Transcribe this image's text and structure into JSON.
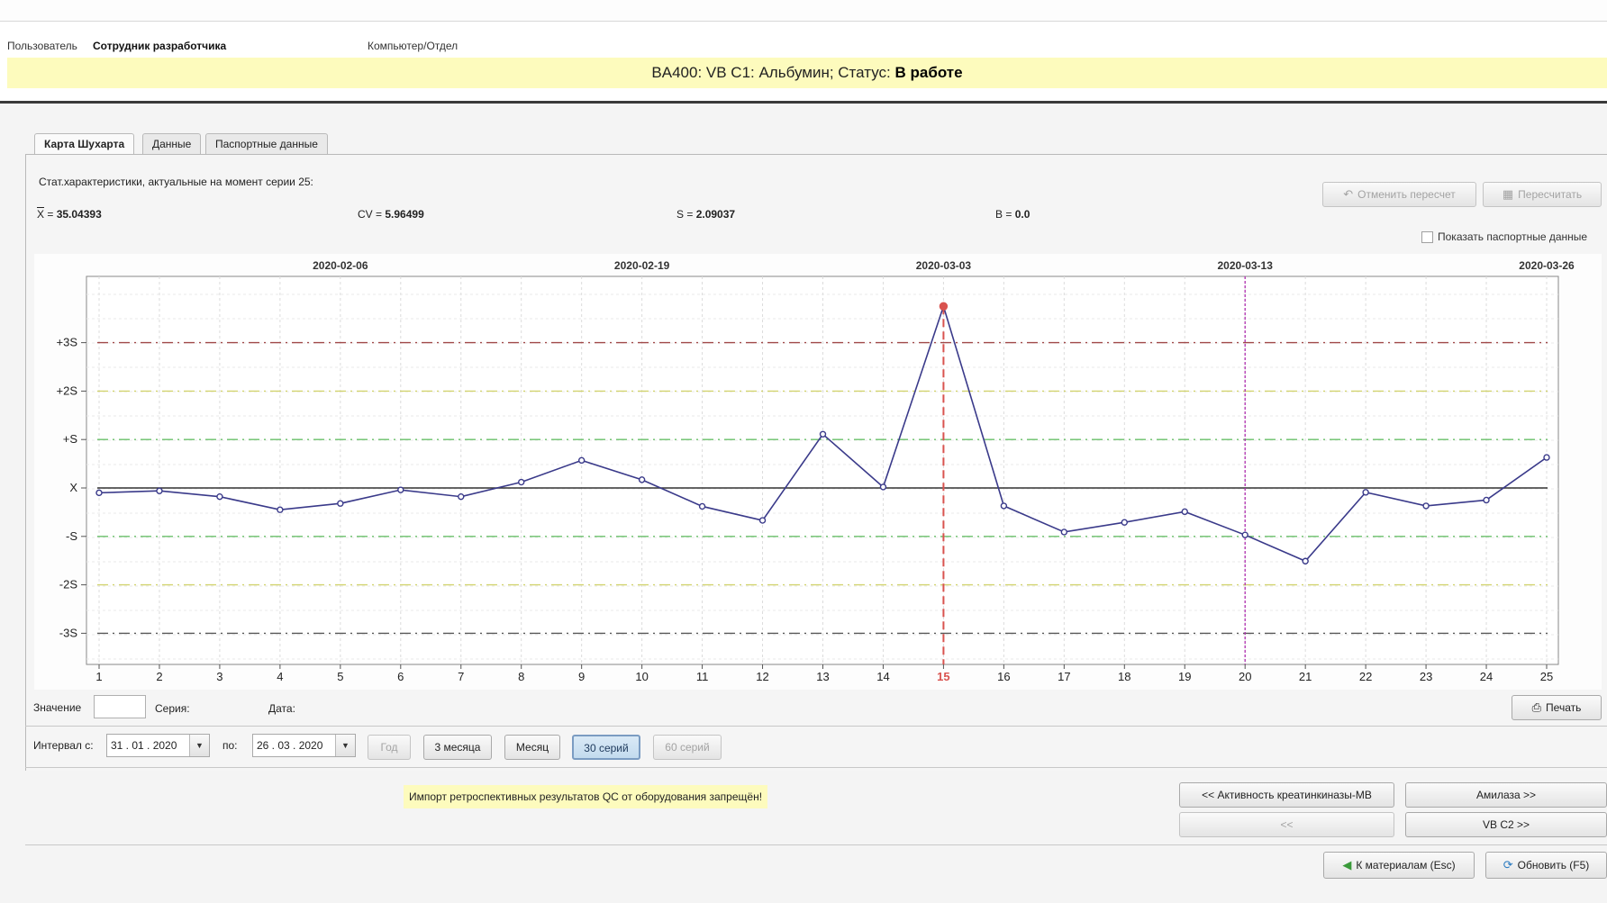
{
  "header": {
    "user_label": "Пользователь",
    "user_name": "Сотрудник разработчика",
    "computer_label": "Компьютер/Отдел"
  },
  "status": {
    "prefix": "BA400: VB C1: Альбумин; Статус:",
    "state": "В работе"
  },
  "tabs": [
    {
      "label": "Карта Шухарта",
      "active": true
    },
    {
      "label": "Данные",
      "active": false
    },
    {
      "label": "Паспортные данные",
      "active": false
    }
  ],
  "stats": {
    "title": "Стат.характеристики, актуальные на момент серии 25:",
    "x_label": "X",
    "x_value": "35.04393",
    "cv_label": "CV",
    "cv_value": "5.96499",
    "s_label": "S",
    "s_value": "2.09037",
    "b_label": "B",
    "b_value": "0.0",
    "eq": " = "
  },
  "toolbar": {
    "cancel_recalc": "Отменить пересчет",
    "recalc": "Пересчитать",
    "show_passport": "Показать паспортные данные"
  },
  "chart_data": {
    "type": "line",
    "x": [
      1,
      2,
      3,
      4,
      5,
      6,
      7,
      8,
      9,
      10,
      11,
      12,
      13,
      14,
      15,
      16,
      17,
      18,
      19,
      20,
      21,
      22,
      23,
      24,
      25
    ],
    "y_sigma": [
      -0.1,
      -0.06,
      -0.18,
      -0.45,
      -0.32,
      -0.04,
      -0.18,
      0.12,
      0.57,
      0.17,
      -0.38,
      -0.67,
      1.11,
      0.02,
      3.75,
      -0.37,
      -0.91,
      -0.71,
      -0.49,
      -0.97,
      -1.51,
      -0.09,
      -0.37,
      -0.25,
      0.63
    ],
    "ylim": [
      -3.7,
      4.4
    ],
    "y_ticks": [
      {
        "label": "+3S",
        "value": 3,
        "color": "#a04848"
      },
      {
        "label": "+2S",
        "value": 2,
        "color": "#d2d470"
      },
      {
        "label": "+S",
        "value": 1,
        "color": "#6ac06a"
      },
      {
        "label": "X",
        "value": 0,
        "color": "#333333"
      },
      {
        "label": "-S",
        "value": -1,
        "color": "#6ac06a"
      },
      {
        "label": "-2S",
        "value": -2,
        "color": "#d2d470"
      },
      {
        "label": "-3S",
        "value": -3,
        "color": "#585858"
      }
    ],
    "date_ticks": [
      {
        "label": "2020-02-06",
        "series": 5
      },
      {
        "label": "2020-02-19",
        "series": 10
      },
      {
        "label": "2020-03-03",
        "series": 15
      },
      {
        "label": "2020-03-13",
        "series": 20
      },
      {
        "label": "2020-03-26",
        "series": 25
      }
    ],
    "highlight_series": 15,
    "highlight_color": "#d9534f",
    "marker_series": 20,
    "marker_color": "#b030b0",
    "line_color": "#3a3a8a",
    "grid": true
  },
  "value_row": {
    "value_label": "Значение",
    "series_label": "Серия:",
    "date_label": "Дата:",
    "print": "Печать"
  },
  "interval": {
    "from_label": "Интервал с:",
    "from_value": "31 . 01 . 2020",
    "to_label": "по:",
    "to_value": "26 . 03 . 2020",
    "buttons": [
      {
        "label": "Год",
        "state": "disabled"
      },
      {
        "label": "3 месяца",
        "state": "normal"
      },
      {
        "label": "Месяц",
        "state": "normal"
      },
      {
        "label": "30 серий",
        "state": "pressed"
      },
      {
        "label": "60 серий",
        "state": "disabled"
      }
    ]
  },
  "notice": "Импорт ретроспективных результатов QC от оборудования запрещён!",
  "nav": {
    "prev_analyte": "<< Активность креатинкиназы-МВ",
    "next_analyte": "Амилаза >>",
    "prev_material": "<<",
    "next_material": "VB C2 >>"
  },
  "footer": {
    "to_materials": "К материалам (Esc)",
    "refresh": "Обновить (F5)"
  }
}
